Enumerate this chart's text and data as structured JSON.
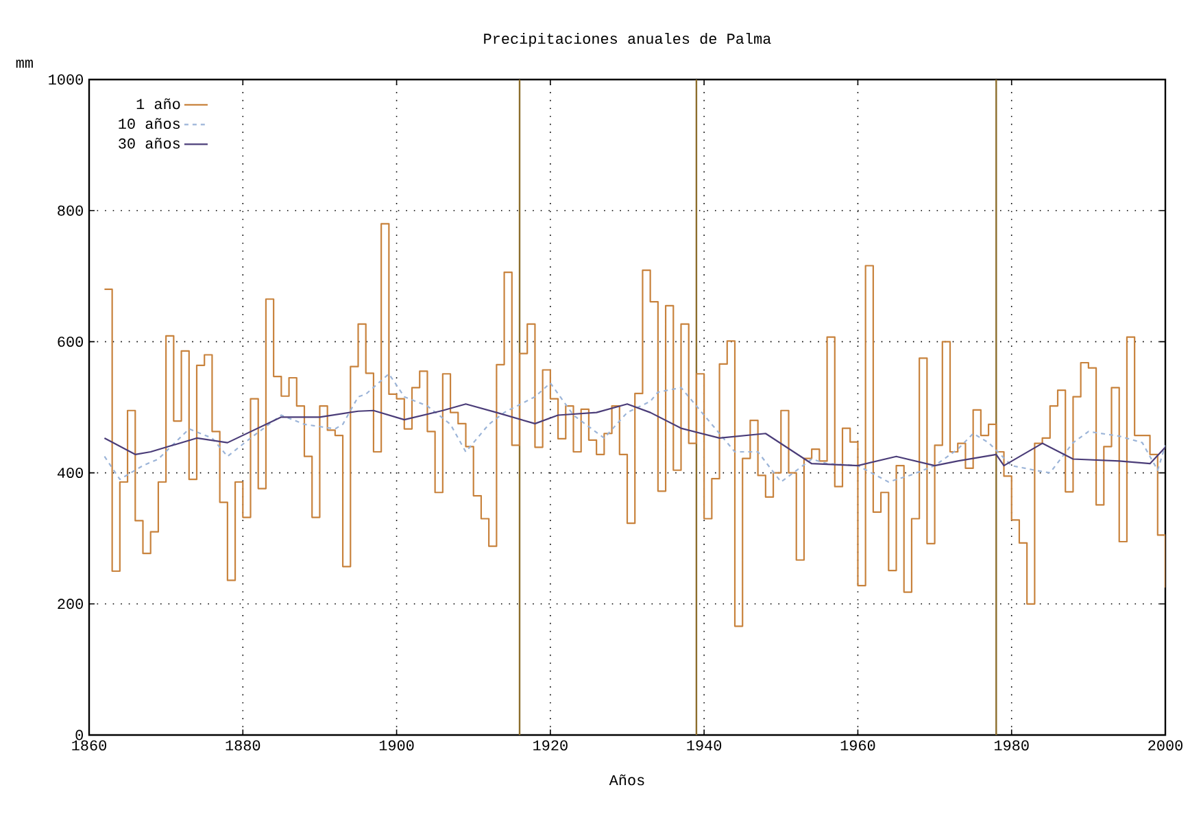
{
  "chart_data": {
    "type": "line",
    "title": "Precipitaciones anuales de Palma",
    "xlabel": "Años",
    "ylabel": "mm",
    "xlim": [
      1860,
      2000
    ],
    "xticks": [
      1860,
      1880,
      1900,
      1920,
      1940,
      1960,
      1980,
      2000
    ],
    "ylim": [
      0,
      1000
    ],
    "yticks": [
      0,
      200,
      400,
      600,
      800,
      1000
    ],
    "grid": true,
    "legend": "top left",
    "ref_lines": [
      {
        "axis": "x",
        "value": 1916,
        "color": "#8c6d2c"
      },
      {
        "axis": "x",
        "value": 1939,
        "color": "#8c6d2c"
      },
      {
        "axis": "x",
        "value": 1978,
        "color": "#8c6d2c"
      }
    ],
    "series": [
      {
        "name": "1 año",
        "type": "step",
        "color": "#c8823c",
        "x": [
          1862,
          1863,
          1864,
          1865,
          1866,
          1867,
          1868,
          1869,
          1870,
          1871,
          1872,
          1873,
          1874,
          1875,
          1876,
          1877,
          1878,
          1879,
          1880,
          1881,
          1882,
          1883,
          1884,
          1885,
          1886,
          1887,
          1888,
          1889,
          1890,
          1891,
          1892,
          1893,
          1894,
          1895,
          1896,
          1897,
          1898,
          1899,
          1900,
          1901,
          1902,
          1903,
          1904,
          1905,
          1906,
          1907,
          1908,
          1909,
          1910,
          1911,
          1912,
          1913,
          1914,
          1915,
          1916,
          1917,
          1918,
          1919,
          1920,
          1921,
          1922,
          1923,
          1924,
          1925,
          1926,
          1927,
          1928,
          1929,
          1930,
          1931,
          1932,
          1933,
          1934,
          1935,
          1936,
          1937,
          1938,
          1939,
          1940,
          1941,
          1942,
          1943,
          1944,
          1945,
          1946,
          1947,
          1948,
          1949,
          1950,
          1951,
          1952,
          1953,
          1954,
          1955,
          1956,
          1957,
          1958,
          1959,
          1960,
          1961,
          1962,
          1963,
          1964,
          1965,
          1966,
          1967,
          1968,
          1969,
          1970,
          1971,
          1972,
          1973,
          1974,
          1975,
          1976,
          1977,
          1978,
          1979,
          1980,
          1981,
          1982,
          1983,
          1984,
          1985,
          1986,
          1987,
          1988,
          1989,
          1990,
          1991,
          1992,
          1993,
          1994,
          1995,
          1996,
          1997,
          1998,
          1999,
          2000
        ],
        "values": [
          680,
          250,
          386,
          495,
          327,
          277,
          310,
          386,
          609,
          479,
          586,
          390,
          564,
          580,
          463,
          355,
          236,
          386,
          332,
          513,
          376,
          665,
          547,
          517,
          545,
          502,
          425,
          332,
          502,
          465,
          457,
          257,
          562,
          627,
          552,
          432,
          780,
          520,
          513,
          467,
          530,
          555,
          463,
          370,
          551,
          492,
          475,
          440,
          365,
          330,
          288,
          565,
          706,
          442,
          582,
          627,
          439,
          557,
          513,
          452,
          502,
          432,
          497,
          450,
          428,
          460,
          502,
          428,
          323,
          521,
          709,
          661,
          372,
          655,
          404,
          627,
          445,
          551,
          330,
          391,
          566,
          601,
          166,
          422,
          480,
          396,
          363,
          400,
          495,
          400,
          267,
          422,
          436,
          418,
          607,
          379,
          468,
          447,
          228,
          716,
          340,
          370,
          251,
          411,
          218,
          330,
          575,
          292,
          442,
          600,
          432,
          445,
          407,
          496,
          457,
          474,
          432,
          395,
          328,
          293,
          200,
          445,
          453,
          502,
          526,
          371,
          516,
          568,
          560,
          351,
          440,
          530,
          295,
          607,
          457,
          457,
          428,
          305,
          225
        ]
      },
      {
        "name": "10 años",
        "type": "line",
        "line_style": "dashed",
        "color": "#9bb4d8",
        "x": [
          1862,
          1864,
          1867,
          1869,
          1873,
          1876,
          1878,
          1881,
          1885,
          1888,
          1892,
          1893,
          1895,
          1896,
          1899,
          1901,
          1904,
          1907,
          1909,
          1912,
          1914,
          1918,
          1920,
          1923,
          1927,
          1930,
          1933,
          1934,
          1937,
          1939,
          1942,
          1944,
          1947,
          1950,
          1954,
          1956,
          1960,
          1964,
          1967,
          1970,
          1973,
          1975,
          1977,
          1980,
          1983,
          1985,
          1988,
          1990,
          1994,
          1997,
          1999,
          2000
        ],
        "values": [
          425,
          390,
          411,
          421,
          467,
          453,
          425,
          453,
          488,
          474,
          467,
          474,
          516,
          520,
          551,
          516,
          502,
          474,
          432,
          474,
          492,
          516,
          537,
          488,
          453,
          492,
          509,
          523,
          530,
          502,
          460,
          432,
          432,
          386,
          421,
          414,
          411,
          386,
          397,
          411,
          436,
          460,
          446,
          411,
          404,
          400,
          446,
          463,
          456,
          446,
          404,
          442
        ]
      },
      {
        "name": "30 años",
        "type": "line",
        "color": "#4a3c78",
        "x": [
          1862,
          1866,
          1868,
          1874,
          1878,
          1885,
          1890,
          1895,
          1897,
          1901,
          1906,
          1909,
          1913,
          1918,
          1921,
          1926,
          1930,
          1933,
          1937,
          1942,
          1948,
          1954,
          1960,
          1965,
          1970,
          1973,
          1978,
          1979,
          1984,
          1988,
          1994,
          1998,
          2000
        ],
        "values": [
          453,
          428,
          432,
          453,
          446,
          485,
          485,
          494,
          495,
          481,
          495,
          505,
          492,
          475,
          488,
          492,
          505,
          492,
          468,
          453,
          460,
          414,
          411,
          425,
          411,
          418,
          428,
          411,
          445,
          421,
          418,
          414,
          439
        ]
      }
    ]
  }
}
